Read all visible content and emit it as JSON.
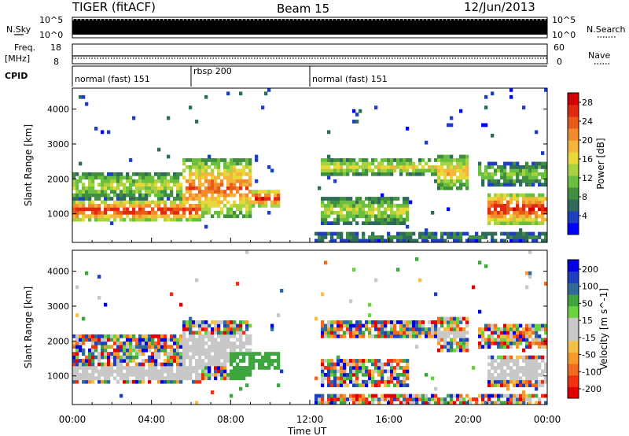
{
  "header": {
    "title": "TIGER (fitACF)",
    "beam": "Beam 15",
    "date": "12/Jun/2013"
  },
  "top_panels": {
    "nsky_label": "N.Sky",
    "nsearch_label": "N.Search",
    "nsky_ticks": [
      "10^5",
      "10^0"
    ],
    "nsearch_ticks": [
      "10^5",
      "10^0"
    ],
    "freq_label": "Freq.",
    "freq_unit": "[MHz]",
    "freq_ticks": [
      "18",
      "8"
    ],
    "nave_label": "Nave",
    "nave_ticks": [
      "60",
      "0"
    ],
    "cpid_label": "CPID"
  },
  "cpid_segments": [
    {
      "label": "normal (fast) 151",
      "start_hour": 0,
      "end_hour": 6
    },
    {
      "label": "rbsp 200",
      "start_hour": 6,
      "end_hour": 12
    },
    {
      "label": "normal (fast) 151",
      "start_hour": 12,
      "end_hour": 24
    }
  ],
  "colors": {
    "power_scale": [
      "#0000ff",
      "#1f3fbf",
      "#2f6a5a",
      "#3f8f3f",
      "#6abf3f",
      "#a8d23f",
      "#e8d83a",
      "#f5b53a",
      "#f08a2a",
      "#e85a1a",
      "#e02a10",
      "#d00000"
    ],
    "velocity_scale": [
      "#e00000",
      "#f03010",
      "#f06a20",
      "#f59a2a",
      "#f5c04a",
      "#c8c8c8",
      "#c8c8c8",
      "#6ad23f",
      "#3fa53f",
      "#2f6a9a",
      "#1f3fbf",
      "#0000e0"
    ]
  },
  "chart_data": [
    {
      "type": "heatmap",
      "title": "",
      "xlabel": "Time UT",
      "ylabel": "Slant Range [km]",
      "x_ticks": [
        "00:00",
        "04:00",
        "08:00",
        "12:00",
        "16:00",
        "20:00",
        "00:00"
      ],
      "x_range_hours": [
        0,
        24
      ],
      "y_ticks": [
        1000,
        2000,
        3000,
        4000
      ],
      "ylim": [
        180,
        4600
      ],
      "colorbar_label": "Power [dB]",
      "colorbar_ticks": [
        4,
        8,
        12,
        16,
        20,
        24,
        28
      ],
      "colorbar_range": [
        0,
        30
      ]
    },
    {
      "type": "heatmap",
      "title": "",
      "xlabel": "Time UT",
      "ylabel": "Slant Range [km]",
      "x_ticks": [
        "00:00",
        "04:00",
        "08:00",
        "12:00",
        "16:00",
        "20:00",
        "00:00"
      ],
      "x_range_hours": [
        0,
        24
      ],
      "y_ticks": [
        1000,
        2000,
        3000,
        4000
      ],
      "ylim": [
        180,
        4600
      ],
      "colorbar_label": "Velocity [m s^-1]",
      "colorbar_ticks": [
        "200",
        "100",
        "50",
        "15",
        "-15",
        "-50",
        "-100",
        "-200"
      ]
    }
  ]
}
